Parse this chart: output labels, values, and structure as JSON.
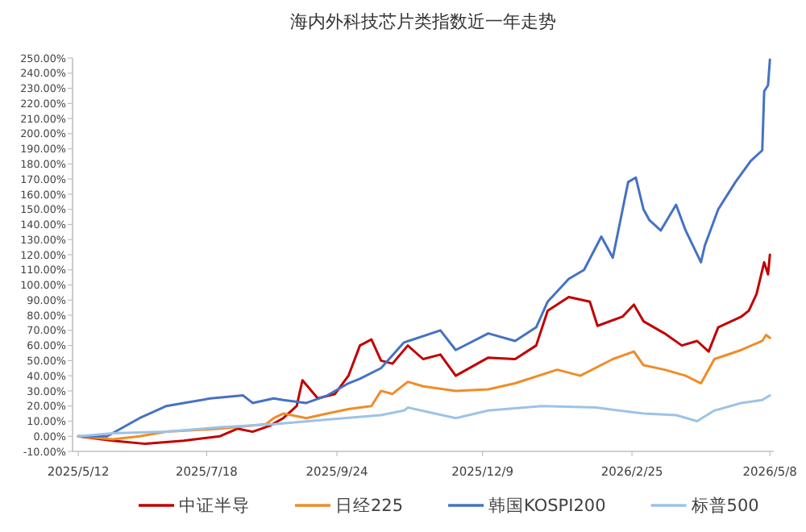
{
  "chart_data": {
    "type": "line",
    "title": "海内外科技芯片类指数近一年走势",
    "xlim": [
      "2025-05-09",
      "2026-05-10"
    ],
    "xticks": [
      {
        "value": "2025-05-12",
        "label": "2025/5/12"
      },
      {
        "value": "2025-07-18",
        "label": "2025/7/18"
      },
      {
        "value": "2025-09-24",
        "label": "2025/9/24"
      },
      {
        "value": "2025-12-09",
        "label": "2025/12/9"
      },
      {
        "value": "2026-02-25",
        "label": "2026/2/25"
      },
      {
        "value": "2026-05-08",
        "label": "2026/5/8"
      }
    ],
    "ylim": [
      -10,
      250
    ],
    "yticks": [
      {
        "value": -10,
        "label": "-10.00%"
      },
      {
        "value": 0,
        "label": "0.00%"
      },
      {
        "value": 10,
        "label": "10.00%"
      },
      {
        "value": 20,
        "label": "20.00%"
      },
      {
        "value": 30,
        "label": "30.00%"
      },
      {
        "value": 40,
        "label": "40.00%"
      },
      {
        "value": 50,
        "label": "50.00%"
      },
      {
        "value": 60,
        "label": "60.00%"
      },
      {
        "value": 70,
        "label": "70.00%"
      },
      {
        "value": 80,
        "label": "80.00%"
      },
      {
        "value": 90,
        "label": "90.00%"
      },
      {
        "value": 100,
        "label": "100.00%"
      },
      {
        "value": 110,
        "label": "110.00%"
      },
      {
        "value": 120,
        "label": "120.00%"
      },
      {
        "value": 130,
        "label": "130.00%"
      },
      {
        "value": 140,
        "label": "140.00%"
      },
      {
        "value": 150,
        "label": "150.00%"
      },
      {
        "value": 160,
        "label": "160.00%"
      },
      {
        "value": 170,
        "label": "170.00%"
      },
      {
        "value": 180,
        "label": "180.00%"
      },
      {
        "value": 190,
        "label": "190.00%"
      },
      {
        "value": 200,
        "label": "200.00%"
      },
      {
        "value": 210,
        "label": "210.00%"
      },
      {
        "value": 220,
        "label": "220.00%"
      },
      {
        "value": 230,
        "label": "230.00%"
      },
      {
        "value": 240,
        "label": "240.00%"
      },
      {
        "value": 250,
        "label": "250.00%"
      }
    ],
    "grid": false,
    "legend": "bottom",
    "marker": "none",
    "line_style": "solid",
    "series": [
      {
        "name": "中证半导",
        "color": "#c00000",
        "x": [
          "2025-05-12",
          "2025-05-30",
          "2025-06-16",
          "2025-07-06",
          "2025-07-25",
          "2025-08-03",
          "2025-08-11",
          "2025-08-20",
          "2025-08-27",
          "2025-09-03",
          "2025-09-06",
          "2025-09-14",
          "2025-09-23",
          "2025-09-30",
          "2025-10-06",
          "2025-10-12",
          "2025-10-17",
          "2025-10-23",
          "2025-10-31",
          "2025-11-08",
          "2025-11-17",
          "2025-11-25",
          "2025-12-12",
          "2025-12-26",
          "2026-01-06",
          "2026-01-12",
          "2026-01-23",
          "2026-02-03",
          "2026-02-07",
          "2026-02-20",
          "2026-02-26",
          "2026-03-03",
          "2026-03-14",
          "2026-03-23",
          "2026-03-31",
          "2026-04-06",
          "2026-04-11",
          "2026-04-23",
          "2026-04-27",
          "2026-05-01",
          "2026-05-05",
          "2026-05-07",
          "2026-05-08"
        ],
        "values": [
          0,
          -3,
          -5,
          -3,
          0,
          5,
          3,
          7,
          12,
          20,
          37,
          25,
          28,
          40,
          60,
          64,
          50,
          48,
          60,
          51,
          54,
          40,
          52,
          51,
          60,
          83,
          92,
          89,
          73,
          79,
          87,
          76,
          68,
          60,
          63,
          56,
          72,
          79,
          83,
          94,
          115,
          107,
          120
        ]
      },
      {
        "name": "日经225",
        "color": "#f08c28",
        "x": [
          "2025-05-12",
          "2025-05-30",
          "2025-06-13",
          "2025-06-27",
          "2025-07-25",
          "2025-08-18",
          "2025-08-22",
          "2025-08-27",
          "2025-09-08",
          "2025-09-19",
          "2025-09-30",
          "2025-10-12",
          "2025-10-17",
          "2025-10-23",
          "2025-10-31",
          "2025-11-08",
          "2025-11-25",
          "2025-12-12",
          "2025-12-26",
          "2026-01-17",
          "2026-01-29",
          "2026-02-15",
          "2026-02-26",
          "2026-03-03",
          "2026-03-14",
          "2026-03-25",
          "2026-04-02",
          "2026-04-09",
          "2026-04-23",
          "2026-05-04",
          "2026-05-06",
          "2026-05-08"
        ],
        "values": [
          0,
          -2,
          0,
          3,
          5,
          8,
          12,
          15,
          12,
          15,
          18,
          20,
          30,
          28,
          36,
          33,
          30,
          31,
          35,
          44,
          40,
          51,
          56,
          47,
          44,
          40,
          35,
          51,
          57,
          63,
          67,
          65
        ]
      },
      {
        "name": "韩国KOSPI200",
        "color": "#4472c4",
        "x": [
          "2025-05-12",
          "2025-05-27",
          "2025-06-13",
          "2025-06-27",
          "2025-07-06",
          "2025-07-20",
          "2025-08-06",
          "2025-08-11",
          "2025-08-22",
          "2025-08-27",
          "2025-09-08",
          "2025-09-19",
          "2025-09-30",
          "2025-10-06",
          "2025-10-17",
          "2025-10-29",
          "2025-11-17",
          "2025-11-25",
          "2025-12-12",
          "2025-12-26",
          "2026-01-06",
          "2026-01-12",
          "2026-01-23",
          "2026-01-31",
          "2026-02-09",
          "2026-02-15",
          "2026-02-23",
          "2026-02-27",
          "2026-03-03",
          "2026-03-06",
          "2026-03-12",
          "2026-03-20",
          "2026-03-25",
          "2026-04-02",
          "2026-04-04",
          "2026-04-11",
          "2026-04-20",
          "2026-04-28",
          "2026-05-04",
          "2026-05-05",
          "2026-05-07",
          "2026-05-08"
        ],
        "values": [
          0,
          0,
          12,
          20,
          22,
          25,
          27,
          22,
          25,
          24,
          22,
          27,
          35,
          38,
          45,
          62,
          70,
          57,
          68,
          63,
          72,
          89,
          104,
          110,
          132,
          118,
          168,
          171,
          150,
          143,
          136,
          153,
          136,
          115,
          126,
          150,
          168,
          182,
          189,
          228,
          232,
          249
        ]
      },
      {
        "name": "标普500",
        "color": "#9dc3e6",
        "x": [
          "2025-05-12",
          "2025-05-30",
          "2025-06-27",
          "2025-07-25",
          "2025-08-22",
          "2025-09-19",
          "2025-10-17",
          "2025-10-29",
          "2025-10-31",
          "2025-11-25",
          "2025-12-12",
          "2026-01-09",
          "2026-02-06",
          "2026-03-03",
          "2026-03-20",
          "2026-03-31",
          "2026-04-09",
          "2026-04-23",
          "2026-05-04",
          "2026-05-08"
        ],
        "values": [
          0,
          2,
          3,
          6,
          8,
          11,
          14,
          17,
          19,
          12,
          17,
          20,
          19,
          15,
          14,
          10,
          17,
          22,
          24,
          27
        ]
      }
    ]
  }
}
